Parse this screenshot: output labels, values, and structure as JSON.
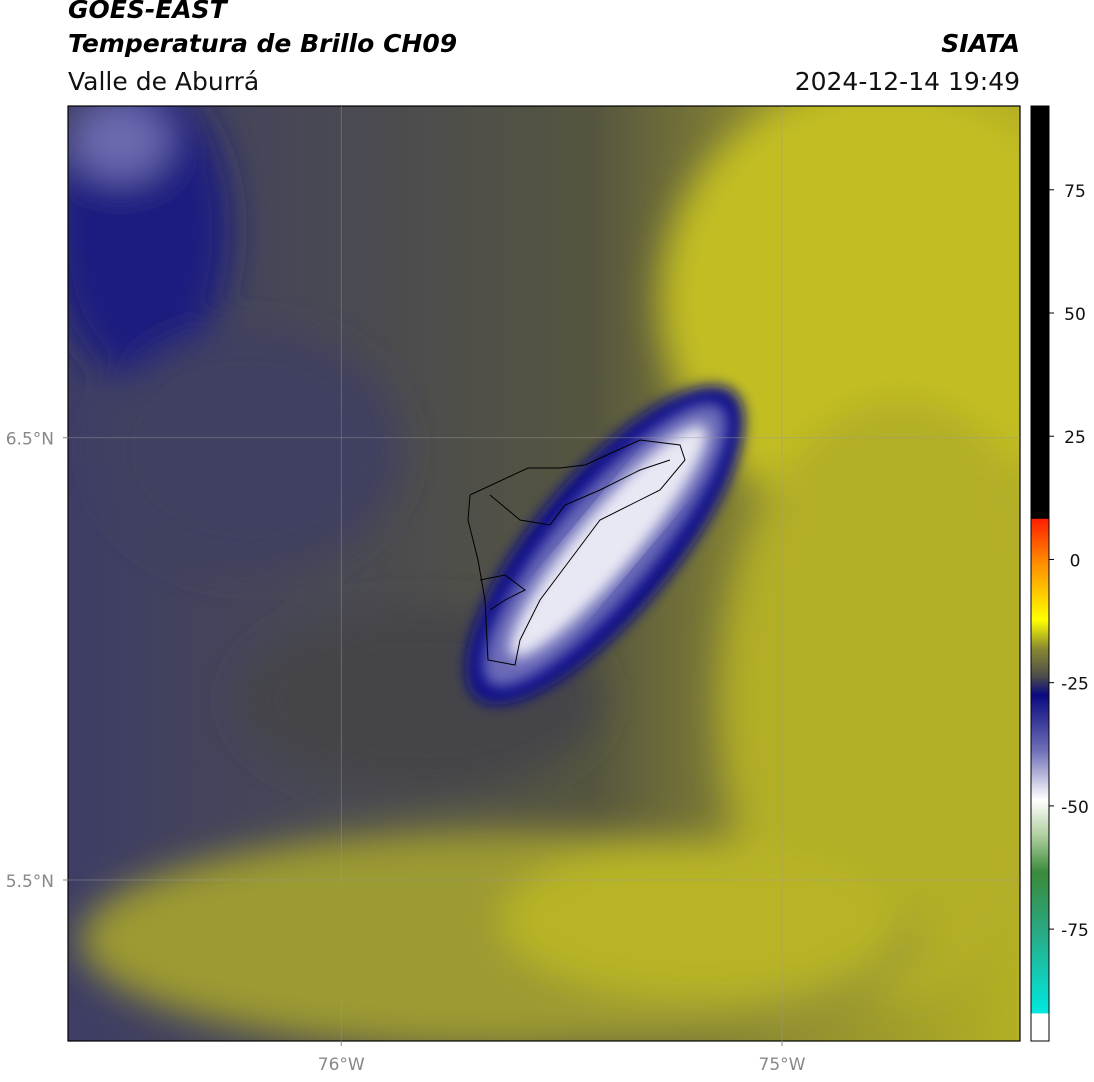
{
  "header": {
    "satellite": "GOES-EAST",
    "product": "Temperatura de Brillo CH09",
    "region": "Valle de Aburrá",
    "source": "SIATA",
    "datetime": "2024-12-14 19:49"
  },
  "map": {
    "xlim": [
      -76.62,
      -74.46
    ],
    "ylim": [
      5.136,
      7.25
    ],
    "xticks": [
      {
        "value": -76,
        "label": "76°W"
      },
      {
        "value": -75,
        "label": "75°W"
      }
    ],
    "yticks": [
      {
        "value": 6.5,
        "label": "6.5°N"
      },
      {
        "value": 5.5,
        "label": "5.5°N"
      }
    ],
    "grid": true
  },
  "colorbar": {
    "lim": [
      -97.7,
      92
    ],
    "ticks": [
      75,
      50,
      25,
      0,
      -25,
      -50,
      -75
    ]
  }
}
